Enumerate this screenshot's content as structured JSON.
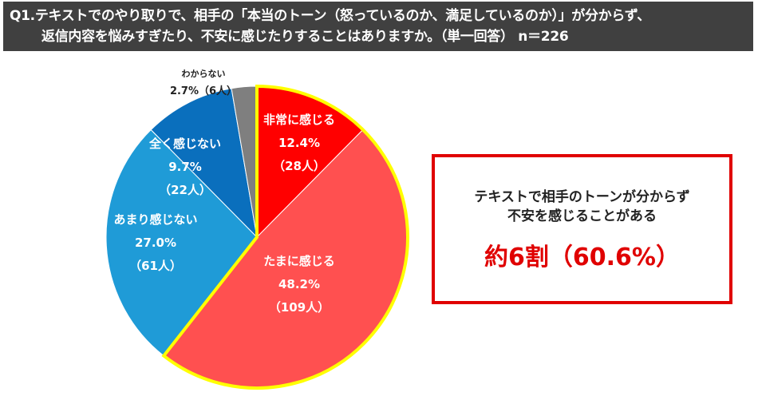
{
  "header": {
    "line1": "Q1.テキストでのやり取りで、相手の「本当のトーン（怒っているのか、満足しているのか）」が分からず、",
    "line2": "返信内容を悩みすぎたり、不安に感じたりすることはありますか。（単一回答） n＝226"
  },
  "chart_data": {
    "type": "pie",
    "title": "Q1.テキストでのやり取りで、相手の「本当のトーン（怒っているのか、満足しているのか）」が分からず、返信内容を悩みすぎたり、不安に感じたりすることはありますか。（単一回答） n＝226",
    "n": 226,
    "start": "top, clockwise",
    "slices": [
      {
        "label": "非常に感じる",
        "value": 12.4,
        "count_label": "（28人）",
        "color": "#ff0000",
        "highlight": true
      },
      {
        "label": "たまに感じる",
        "value": 48.2,
        "count_label": "（109人）",
        "color": "#ff5050",
        "highlight": true
      },
      {
        "label": "あまり感じない",
        "value": 27.0,
        "count_label": "（61人）",
        "color": "#1f9bd7",
        "highlight": false
      },
      {
        "label": "全く感じない",
        "value": 9.7,
        "count_label": "（22人）",
        "color": "#0a6fbd",
        "highlight": false
      },
      {
        "label": "わからない",
        "value": 2.7,
        "count_label": "（6人）",
        "color": "#7f7f7f",
        "highlight": false
      }
    ],
    "highlight_color": "#ffff00"
  },
  "callout": {
    "line1": "テキストで相手のトーンが分からず",
    "line2": "不安を感じることがある",
    "value": "約6割（60.6%）"
  }
}
